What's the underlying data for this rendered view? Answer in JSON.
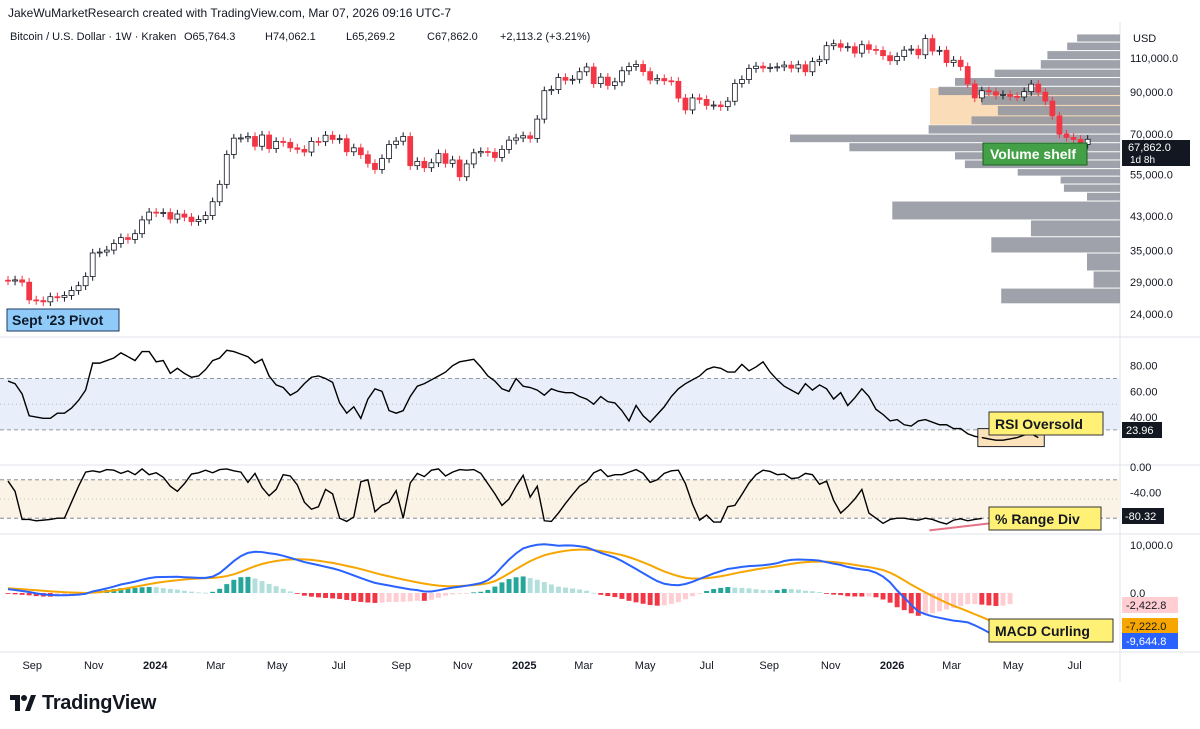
{
  "header": {
    "attribution": "JakeWuMarketResearch created with TradingView.com, Mar 07, 2026 09:16 UTC-7"
  },
  "footer": {
    "brand": "TradingView"
  },
  "colors": {
    "up": "#ffffff",
    "down": "#f23645",
    "candle_outline": "#131722",
    "volume_profile": "#9598a1",
    "value_area": "#f9d8b0",
    "rsi_line": "#000000",
    "rsi_band": "#e9effa",
    "range_band": "#fbf3e6",
    "macd_line": "#2962ff",
    "signal_line": "#f7a600",
    "hist_pos_strong": "#26a69a",
    "hist_pos_weak": "#b2dfdb",
    "hist_neg_strong": "#f23645",
    "hist_neg_weak": "#ffcdd2",
    "label_yellow": "#fff176",
    "label_green": "#43a047",
    "label_blue": "#90caf9",
    "divergence": "#e57388"
  },
  "chart_data": [
    {
      "type": "candlestick",
      "title": "Bitcoin / U.S. Dollar · 1W · Kraken",
      "ohlc_summary": {
        "open": "O65,764.3",
        "high": "H74,062.1",
        "low": "L65,269.2",
        "close": "C67,862.0",
        "change": "+2,113.2 (+3.21%)"
      },
      "currency": "USD",
      "price_ticks": [
        "110,000.0",
        "90,000.0",
        "70,000.0",
        "55,000.0",
        "43,000.0",
        "35,000.0",
        "29,000.0",
        "24,000.0"
      ],
      "scale": "log",
      "ylim": [
        24000,
        130000
      ],
      "last_price": "67,862.0",
      "countdown": "1d 8h",
      "x_ticks": [
        "Sep",
        "Nov",
        "2024",
        "Mar",
        "May",
        "Jul",
        "Sep",
        "Nov",
        "2025",
        "Mar",
        "May",
        "Jul",
        "Sep",
        "Nov",
        "2026",
        "Mar",
        "May",
        "Jul"
      ],
      "x_range": [
        "2023-07-31",
        "2026-08-15"
      ],
      "closes": [
        29200,
        29400,
        29000,
        26100,
        26000,
        25800,
        26600,
        26500,
        26800,
        27600,
        28400,
        30000,
        34500,
        34700,
        35100,
        36500,
        37800,
        37400,
        38700,
        42000,
        44000,
        43800,
        43900,
        42200,
        43500,
        42700,
        41600,
        42100,
        43100,
        46800,
        51900,
        62000,
        68300,
        68400,
        69000,
        65100,
        69600,
        64200,
        67000,
        66600,
        64500,
        63900,
        62900,
        67000,
        66900,
        69500,
        67800,
        68100,
        63000,
        64500,
        61900,
        58800,
        56700,
        60500,
        65800,
        67100,
        69000,
        58000,
        59500,
        57300,
        59000,
        62300,
        58800,
        60000,
        54300,
        58600,
        62600,
        63100,
        62800,
        60900,
        63900,
        67500,
        68400,
        69300,
        68200,
        76500,
        90600,
        91200,
        98000,
        96400,
        97000,
        101400,
        104300,
        94500,
        98200,
        93500,
        95500,
        102000,
        104600,
        105900,
        101500,
        96500,
        97400,
        96100,
        95800,
        86700,
        80800,
        86800,
        86000,
        83000,
        83200,
        82400,
        85100,
        94600,
        96800,
        103400,
        104800,
        103700,
        104100,
        104400,
        105500,
        103600,
        105700,
        101400,
        107700,
        108900,
        118400,
        119800,
        117300,
        117700,
        113300,
        119100,
        115800,
        115100,
        111600,
        108300,
        111000,
        115300,
        116000,
        112200,
        123500,
        114700,
        115200,
        107100,
        108600,
        104600,
        94300,
        86800,
        90600,
        90000,
        88200,
        88600,
        87600,
        87300,
        90100,
        94200,
        89800,
        85200,
        78000,
        70000,
        68600,
        67800,
        65800,
        67862
      ],
      "volume_profile_rows": [
        {
          "price_low": 121000,
          "price_high": 127000,
          "volume": 0.13
        },
        {
          "price_low": 115000,
          "price_high": 121000,
          "volume": 0.16
        },
        {
          "price_low": 109000,
          "price_high": 115000,
          "volume": 0.22
        },
        {
          "price_low": 103000,
          "price_high": 109000,
          "volume": 0.24
        },
        {
          "price_low": 98000,
          "price_high": 103000,
          "volume": 0.38
        },
        {
          "price_low": 93000,
          "price_high": 98000,
          "volume": 0.5
        },
        {
          "price_low": 88000,
          "price_high": 93000,
          "volume": 0.55
        },
        {
          "price_low": 83000,
          "price_high": 88000,
          "volume": 0.42
        },
        {
          "price_low": 78000,
          "price_high": 83000,
          "volume": 0.37
        },
        {
          "price_low": 74000,
          "price_high": 78000,
          "volume": 0.45
        },
        {
          "price_low": 70000,
          "price_high": 74000,
          "volume": 0.58
        },
        {
          "price_low": 66500,
          "price_high": 70000,
          "volume": 1.0
        },
        {
          "price_low": 63000,
          "price_high": 66500,
          "volume": 0.82
        },
        {
          "price_low": 60000,
          "price_high": 63000,
          "volume": 0.5
        },
        {
          "price_low": 57000,
          "price_high": 60000,
          "volume": 0.47
        },
        {
          "price_low": 54500,
          "price_high": 57000,
          "volume": 0.31
        },
        {
          "price_low": 52000,
          "price_high": 54500,
          "volume": 0.18
        },
        {
          "price_low": 49500,
          "price_high": 52000,
          "volume": 0.17
        },
        {
          "price_low": 47000,
          "price_high": 49500,
          "volume": 0.1
        },
        {
          "price_low": 42000,
          "price_high": 47000,
          "volume": 0.69
        },
        {
          "price_low": 38000,
          "price_high": 42000,
          "volume": 0.27
        },
        {
          "price_low": 34500,
          "price_high": 38000,
          "volume": 0.39
        },
        {
          "price_low": 31000,
          "price_high": 34500,
          "volume": 0.1
        },
        {
          "price_low": 28000,
          "price_high": 31000,
          "volume": 0.08
        },
        {
          "price_low": 25500,
          "price_high": 28000,
          "volume": 0.36
        }
      ],
      "value_area": {
        "price_low": 74000,
        "price_high": 92000
      },
      "annotations": [
        "Volume shelf",
        "Sept '23 Pivot"
      ]
    },
    {
      "type": "line",
      "indicator": "RSI",
      "ylim": [
        5,
        100
      ],
      "y_ticks": [
        "80.00",
        "60.00",
        "40.00"
      ],
      "band": [
        30,
        70
      ],
      "midline": 50,
      "last_value": "23.96",
      "values": [
        68,
        66,
        58,
        41,
        40,
        39,
        39,
        43,
        43,
        47,
        53,
        61,
        82,
        82,
        84,
        86,
        90,
        87,
        84,
        91,
        91,
        83,
        84,
        74,
        78,
        74,
        71,
        72,
        77,
        84,
        86,
        92,
        91,
        89,
        87,
        82,
        85,
        72,
        65,
        63,
        57,
        60,
        66,
        71,
        72,
        70,
        67,
        51,
        43,
        48,
        39,
        54,
        62,
        60,
        45,
        43,
        45,
        56,
        64,
        66,
        69,
        72,
        75,
        80,
        83,
        84,
        85,
        79,
        72,
        68,
        62,
        60,
        70,
        64,
        63,
        61,
        57,
        62,
        60,
        59,
        59,
        56,
        54,
        50,
        56,
        52,
        51,
        45,
        37,
        49,
        41,
        36,
        42,
        48,
        56,
        62,
        66,
        69,
        72,
        77,
        79,
        78,
        75,
        75,
        81,
        76,
        79,
        83,
        75,
        69,
        64,
        61,
        58,
        66,
        61,
        65,
        62,
        54,
        59,
        49,
        55,
        62,
        56,
        46,
        42,
        37,
        38,
        34,
        33,
        37,
        38,
        36,
        34,
        34,
        31,
        31,
        27,
        25,
        24,
        23,
        22,
        22,
        23,
        24,
        26,
        27,
        23.96
      ],
      "annotation": "RSI Oversold"
    },
    {
      "type": "line",
      "indicator": "% Range (Williams %R)",
      "ylim": [
        -100,
        0
      ],
      "y_ticks": [
        "0.00",
        "-40.00"
      ],
      "band": [
        -80,
        -20
      ],
      "midline": -50,
      "last_value": "-80.32",
      "values": [
        -22,
        -38,
        -82,
        -82,
        -84,
        -83,
        -82,
        -80,
        -80,
        -55,
        -30,
        -8,
        -6,
        -8,
        -4,
        -5,
        -10,
        -6,
        -12,
        -3,
        -12,
        -9,
        -16,
        -30,
        -38,
        -26,
        -11,
        -9,
        -5,
        -9,
        -4,
        -3,
        -6,
        -8,
        -24,
        -10,
        -32,
        -45,
        -35,
        -12,
        -14,
        -28,
        -55,
        -66,
        -62,
        -35,
        -42,
        -80,
        -85,
        -78,
        -23,
        -20,
        -70,
        -60,
        -55,
        -37,
        -80,
        -25,
        -10,
        -15,
        -5,
        -3,
        -14,
        -8,
        -4,
        -5,
        -4,
        -10,
        -26,
        -42,
        -60,
        -50,
        -30,
        -13,
        -47,
        -30,
        -84,
        -85,
        -72,
        -57,
        -43,
        -30,
        -23,
        -9,
        -4,
        -15,
        -12,
        -12,
        -8,
        -4,
        -10,
        -24,
        -20,
        -10,
        -6,
        -5,
        -26,
        -58,
        -83,
        -75,
        -86,
        -86,
        -62,
        -60,
        -43,
        -25,
        -12,
        -5,
        -7,
        -12,
        -11,
        -18,
        -17,
        -10,
        -12,
        -27,
        -22,
        -52,
        -72,
        -62,
        -50,
        -35,
        -72,
        -80,
        -88,
        -82,
        -80,
        -80,
        -82,
        -83,
        -80,
        -82,
        -86,
        -89,
        -83,
        -81,
        -84,
        -82,
        -80.32
      ],
      "annotation": "% Range Div"
    },
    {
      "type": "line+histogram",
      "indicator": "MACD",
      "ylim": [
        -11500,
        11500
      ],
      "y_ticks": [
        "10,000.0",
        "0.0"
      ],
      "macd_last": "-9,644.8",
      "signal_last": "-7,222.0",
      "histogram_last": "-2,422.8",
      "macd": [
        820,
        620,
        420,
        200,
        -80,
        -280,
        -410,
        -470,
        -480,
        -430,
        -330,
        -170,
        320,
        620,
        960,
        1350,
        1770,
        2060,
        2380,
        2780,
        3110,
        3330,
        3350,
        3360,
        3390,
        3300,
        3230,
        3160,
        3160,
        3420,
        4180,
        5400,
        6670,
        7720,
        8400,
        8620,
        8560,
        8320,
        8130,
        7780,
        7350,
        6920,
        6470,
        6150,
        5830,
        5480,
        5150,
        4750,
        4220,
        3660,
        3130,
        2610,
        2120,
        1830,
        1570,
        1280,
        1020,
        760,
        600,
        320,
        310,
        560,
        870,
        1120,
        1310,
        1530,
        1780,
        2060,
        2680,
        3830,
        5460,
        6990,
        8290,
        9320,
        9780,
        10080,
        10180,
        10060,
        9890,
        9970,
        9930,
        9780,
        9550,
        8990,
        8410,
        7910,
        7400,
        6700,
        5860,
        5030,
        4160,
        3290,
        2490,
        1930,
        1700,
        1620,
        1880,
        2340,
        2930,
        3520,
        4100,
        4570,
        5030,
        5220,
        5470,
        5620,
        5710,
        5800,
        5980,
        6230,
        6690,
        6920,
        7010,
        6940,
        6900,
        6760,
        6440,
        6130,
        5870,
        5430,
        5150,
        4910,
        4730,
        4240,
        3440,
        2220,
        520,
        -940,
        -2500,
        -3840,
        -4440,
        -4870,
        -5190,
        -5490,
        -5770,
        -5930,
        -6140,
        -6750,
        -7470,
        -8250,
        -8950,
        -9350,
        -9550,
        -9644.8
      ],
      "signal": [
        1000,
        900,
        800,
        690,
        570,
        460,
        350,
        260,
        170,
        100,
        50,
        10,
        75,
        185,
        330,
        530,
        750,
        1020,
        1300,
        1580,
        1850,
        2110,
        2330,
        2510,
        2680,
        2830,
        2940,
        3030,
        3100,
        3170,
        3300,
        3540,
        3910,
        4420,
        5030,
        5600,
        6060,
        6420,
        6700,
        6890,
        7010,
        7050,
        7030,
        6920,
        6740,
        6520,
        6290,
        6000,
        5670,
        5350,
        5000,
        4610,
        4200,
        3820,
        3470,
        3150,
        2830,
        2520,
        2230,
        1960,
        1730,
        1550,
        1440,
        1420,
        1460,
        1550,
        1650,
        1800,
        2040,
        2480,
        3240,
        4080,
        5000,
        5860,
        6660,
        7320,
        7890,
        8270,
        8580,
        8820,
        8980,
        9060,
        9080,
        8960,
        8790,
        8550,
        8250,
        7930,
        7500,
        6980,
        6410,
        5810,
        5140,
        4520,
        3980,
        3530,
        3190,
        3020,
        3000,
        3100,
        3270,
        3500,
        3780,
        4090,
        4400,
        4650,
        4930,
        5160,
        5380,
        5600,
        5840,
        6090,
        6300,
        6460,
        6530,
        6560,
        6560,
        6470,
        6310,
        6110,
        5880,
        5650,
        5420,
        5130,
        4800,
        4240,
        3500,
        2640,
        1740,
        930,
        140,
        -640,
        -1350,
        -2040,
        -2670,
        -3230,
        -3810,
        -4440,
        -5040,
        -5660,
        -6230,
        -6720,
        -7222
      ],
      "annotation": "MACD Curling"
    }
  ],
  "axis_labels": [
    "Sep",
    "Nov",
    "2024",
    "Mar",
    "May",
    "Jul",
    "Sep",
    "Nov",
    "2025",
    "Mar",
    "May",
    "Jul",
    "Sep",
    "Nov",
    "2026",
    "Mar",
    "May",
    "Jul"
  ]
}
